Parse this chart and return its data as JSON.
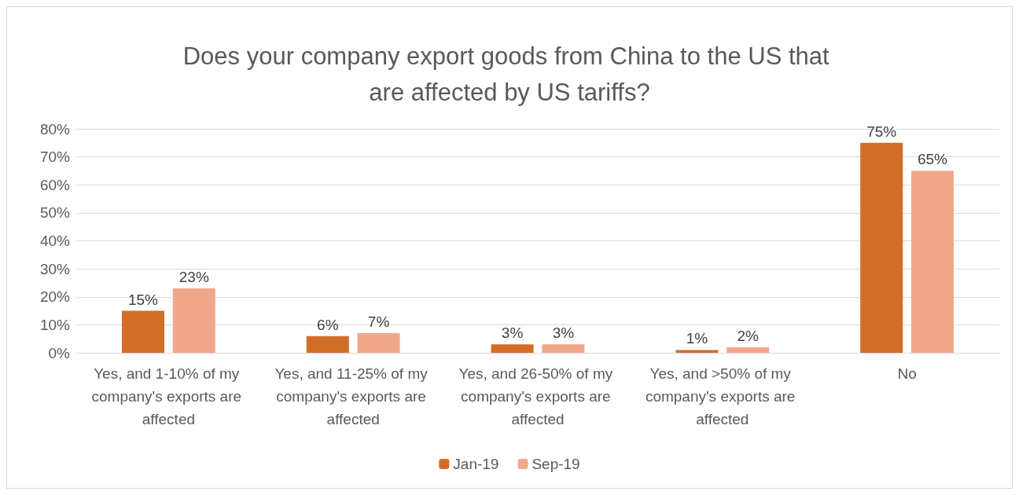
{
  "chart_data": {
    "type": "bar",
    "title": "Does your company export goods from China to the US that are affected by US tariffs?",
    "categories": [
      "Yes, and 1-10% of my company's exports are affected",
      "Yes, and 11-25% of my company's exports are affected",
      "Yes, and 26-50% of my company's exports are affected",
      "Yes, and >50% of my company's exports are affected",
      "No"
    ],
    "series": [
      {
        "name": "Jan-19",
        "color": "#d26e2a",
        "values": [
          15,
          6,
          3,
          1,
          75
        ],
        "value_labels": [
          "15%",
          "6%",
          "3%",
          "1%",
          "75%"
        ]
      },
      {
        "name": "Sep-19",
        "color": "#f1a88a",
        "values": [
          23,
          7,
          3,
          2,
          65
        ],
        "value_labels": [
          "23%",
          "7%",
          "3%",
          "2%",
          "65%"
        ]
      }
    ],
    "ylim": [
      0,
      80
    ],
    "yticks": [
      {
        "value": 0,
        "label": "0%"
      },
      {
        "value": 10,
        "label": "10%"
      },
      {
        "value": 20,
        "label": "20%"
      },
      {
        "value": 30,
        "label": "30%"
      },
      {
        "value": 40,
        "label": "40%"
      },
      {
        "value": 50,
        "label": "50%"
      },
      {
        "value": 60,
        "label": "60%"
      },
      {
        "value": 70,
        "label": "70%"
      },
      {
        "value": 80,
        "label": "80%"
      }
    ],
    "grid": "y",
    "legend": "bottom"
  }
}
